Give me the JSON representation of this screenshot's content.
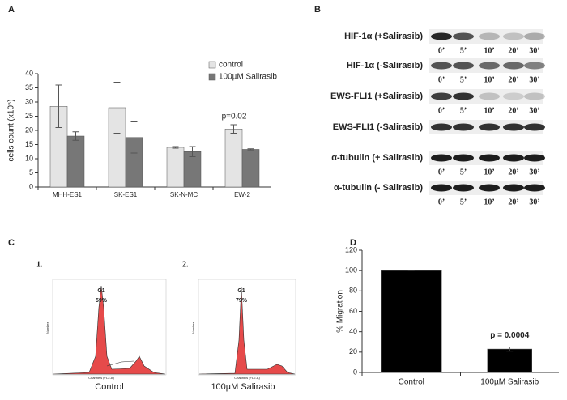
{
  "chart_data": [
    {
      "type": "bar",
      "label": "A",
      "ylabel": "cells count (x10⁵)",
      "categories": [
        "MHH-ES1",
        "SK-ES1",
        "SK-N-MC",
        "EW-2"
      ],
      "series": [
        {
          "name": "control",
          "color": "#e4e4e4",
          "values": [
            28.5,
            28,
            14,
            20.5
          ],
          "errors": [
            7.5,
            9,
            0.3,
            1.5
          ]
        },
        {
          "name": "100µM Salirasib",
          "color": "#777777",
          "values": [
            18,
            17.5,
            12.5,
            13.3
          ],
          "errors": [
            1.5,
            5.5,
            1.8,
            0.2
          ]
        }
      ],
      "annotation": "p=0.02",
      "ylim": [
        0,
        40
      ],
      "yticks": [
        0,
        5,
        10,
        15,
        20,
        25,
        30,
        35,
        40
      ]
    },
    {
      "type": "bar",
      "label": "D",
      "ylabel": "% Migration",
      "categories": [
        "Control",
        "100µM Salirasib"
      ],
      "series": [
        {
          "color": "#000000",
          "values": [
            100,
            23
          ],
          "errors": [
            0,
            2
          ]
        }
      ],
      "annotation": "p = 0.0004",
      "ylim": [
        0,
        120
      ],
      "yticks": [
        0,
        20,
        40,
        60,
        80,
        100,
        120
      ]
    }
  ],
  "blot_panel": {
    "label": "B",
    "lanes": [
      "0’",
      "5’",
      "10’",
      "20’",
      "30’"
    ],
    "rows": [
      "HIF-1α (+Salirasib)",
      "HIF-1α (-Salirasib)",
      "EWS-FLI1 (+Salirasib)",
      "EWS-FLI1 (-Salirasib)",
      "α-tubulin (+ Salirasib)",
      "α-tubulin (- Salirasib)"
    ]
  },
  "flow_panel": {
    "label": "C",
    "plots": [
      {
        "number": "1.",
        "peak": "G1",
        "percent": "59%",
        "caption": "Control"
      },
      {
        "number": "2.",
        "peak": "G1",
        "percent": "79%",
        "caption": "100µM Salirasib"
      }
    ],
    "x_axis": "Channels (FL2-A)",
    "y_axis": "Number"
  }
}
